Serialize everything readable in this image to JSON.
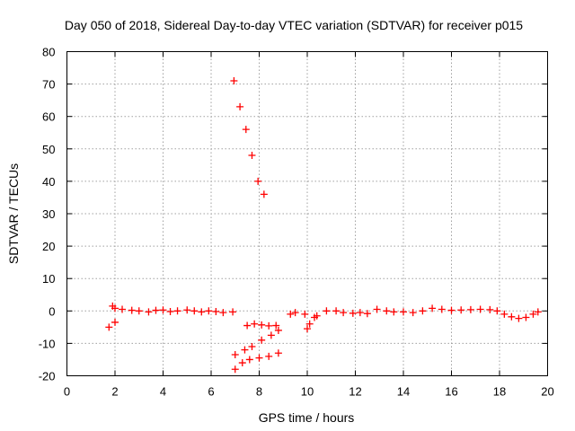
{
  "chart_data": {
    "type": "scatter",
    "title": "Day 050 of 2018, Sidereal Day-to-day VTEC variation (SDTVAR) for receiver p015",
    "xlabel": "GPS time / hours",
    "ylabel": "SDTVAR / TECUs",
    "xlim": [
      0,
      20
    ],
    "ylim": [
      -20,
      80
    ],
    "x_ticks": [
      "0",
      "2",
      "4",
      "6",
      "8",
      "10",
      "12",
      "14",
      "16",
      "18",
      "20"
    ],
    "y_ticks": [
      "-20",
      "-10",
      "0",
      "10",
      "20",
      "30",
      "40",
      "50",
      "60",
      "70",
      "80"
    ],
    "grid": true,
    "marker": "plus",
    "color": "#ff0000",
    "series": [
      {
        "points": [
          [
            1.75,
            -5.0
          ],
          [
            2.0,
            -3.5
          ],
          [
            1.9,
            1.5
          ],
          [
            2.0,
            0.8
          ],
          [
            2.3,
            0.5
          ],
          [
            2.7,
            0.2
          ],
          [
            3.0,
            0.0
          ],
          [
            3.4,
            -0.3
          ],
          [
            3.7,
            0.2
          ],
          [
            4.0,
            0.3
          ],
          [
            4.3,
            -0.2
          ],
          [
            4.6,
            0.0
          ],
          [
            5.0,
            0.3
          ],
          [
            5.3,
            0.0
          ],
          [
            5.6,
            -0.3
          ],
          [
            5.9,
            0.0
          ],
          [
            6.2,
            -0.2
          ],
          [
            6.5,
            -0.5
          ],
          [
            6.9,
            -0.3
          ],
          [
            6.95,
            71.0
          ],
          [
            7.2,
            63.0
          ],
          [
            7.45,
            56.0
          ],
          [
            7.7,
            48.0
          ],
          [
            7.95,
            40.0
          ],
          [
            8.2,
            36.0
          ],
          [
            7.5,
            -4.5
          ],
          [
            7.8,
            -4.0
          ],
          [
            8.1,
            -4.3
          ],
          [
            8.4,
            -4.6
          ],
          [
            8.7,
            -4.5
          ],
          [
            7.0,
            -13.5
          ],
          [
            7.4,
            -12.0
          ],
          [
            7.7,
            -11.0
          ],
          [
            8.1,
            -9.0
          ],
          [
            8.5,
            -7.5
          ],
          [
            8.8,
            -6.0
          ],
          [
            7.0,
            -18.0
          ],
          [
            7.3,
            -16.0
          ],
          [
            7.6,
            -15.0
          ],
          [
            8.0,
            -14.5
          ],
          [
            8.4,
            -14.0
          ],
          [
            8.8,
            -13.0
          ],
          [
            9.3,
            -1.0
          ],
          [
            9.5,
            -0.5
          ],
          [
            9.9,
            -1.0
          ],
          [
            10.0,
            -5.5
          ],
          [
            10.1,
            -4.0
          ],
          [
            10.3,
            -2.0
          ],
          [
            10.4,
            -1.5
          ],
          [
            10.8,
            0.0
          ],
          [
            11.2,
            0.0
          ],
          [
            11.5,
            -0.5
          ],
          [
            11.9,
            -0.7
          ],
          [
            12.2,
            -0.5
          ],
          [
            12.5,
            -0.8
          ],
          [
            12.9,
            0.5
          ],
          [
            13.3,
            0.0
          ],
          [
            13.6,
            -0.3
          ],
          [
            14.0,
            -0.3
          ],
          [
            14.4,
            -0.5
          ],
          [
            14.8,
            0.0
          ],
          [
            15.2,
            0.8
          ],
          [
            15.6,
            0.5
          ],
          [
            16.0,
            0.2
          ],
          [
            16.4,
            0.3
          ],
          [
            16.8,
            0.4
          ],
          [
            17.2,
            0.5
          ],
          [
            17.6,
            0.4
          ],
          [
            17.9,
            0.0
          ],
          [
            18.2,
            -1.0
          ],
          [
            18.5,
            -1.8
          ],
          [
            18.8,
            -2.3
          ],
          [
            19.1,
            -2.0
          ],
          [
            19.4,
            -1.0
          ],
          [
            19.6,
            -0.3
          ]
        ]
      }
    ]
  }
}
